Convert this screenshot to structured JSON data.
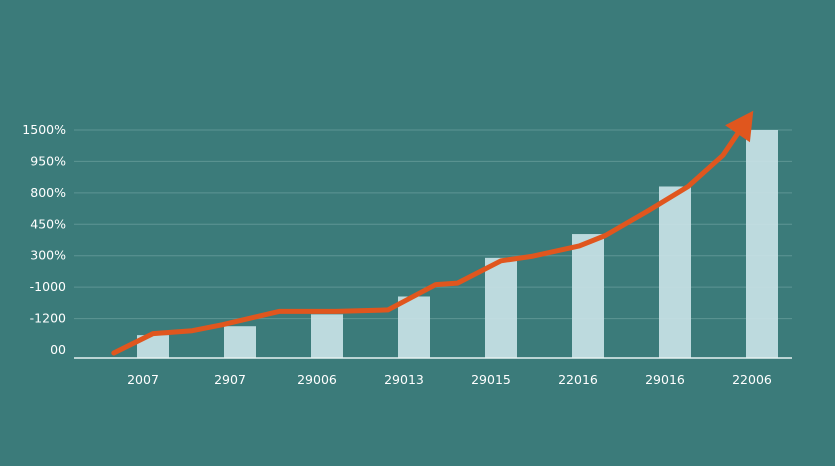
{
  "chart_data": {
    "type": "bar",
    "title": "",
    "xlabel": "",
    "ylabel": "",
    "categories": [
      "2007",
      "2907",
      "29006",
      "29013",
      "29015",
      "22016",
      "29016",
      "22006"
    ],
    "y_tick_labels": [
      "00",
      "-1200",
      "-1000",
      "300%",
      "450%",
      "800%",
      "950%",
      "1500%"
    ],
    "bar_values": [
      0.5,
      0.8,
      1.2,
      1.8,
      3.1,
      3.9,
      5.5,
      7.4
    ],
    "line_x": [
      -0.45,
      0,
      0.45,
      0.8,
      1.45,
      2.1,
      2.7,
      3.25,
      3.5,
      4.0,
      4.35,
      4.9,
      5.2,
      5.7,
      6.15,
      6.55,
      6.9
    ],
    "line_y": [
      -0.1,
      0.55,
      0.65,
      0.85,
      1.3,
      1.3,
      1.35,
      2.2,
      2.25,
      3.0,
      3.15,
      3.5,
      3.85,
      4.7,
      5.5,
      6.55,
      8.05
    ],
    "ylim": [
      0,
      7.4
    ],
    "grid": true,
    "legend": "none",
    "colors": {
      "background": "#3b7b7a",
      "bar": "#c9e2e6",
      "line": "#e0561e",
      "grid": "#5e9594",
      "axis": "#e6f1f1",
      "text": "#ffffff"
    }
  }
}
